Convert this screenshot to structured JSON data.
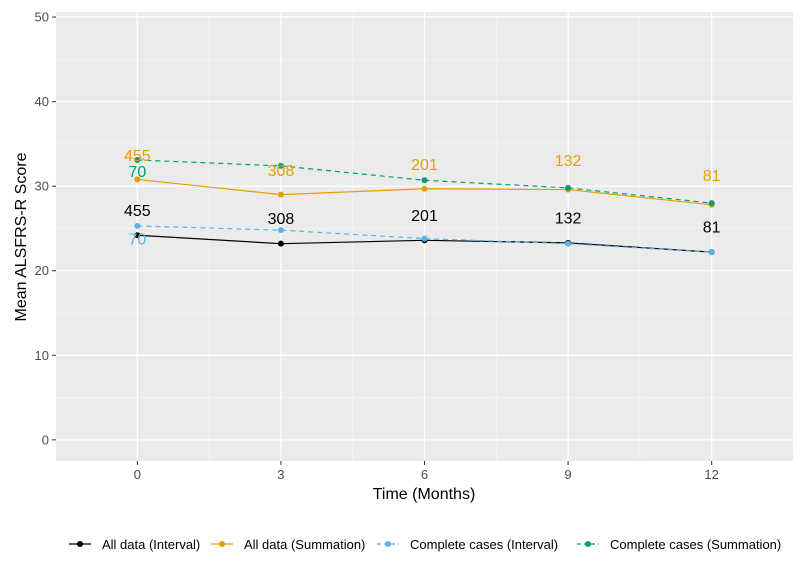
{
  "chart_data": {
    "type": "line",
    "xlabel": "Time (Months)",
    "ylabel": "Mean ALSFRS-R Score",
    "x": [
      0,
      3,
      6,
      9,
      12
    ],
    "xticks": [
      "0",
      "3",
      "6",
      "9",
      "12"
    ],
    "xlim": [
      -1.7,
      13.7
    ],
    "ylim": [
      -2.5,
      50.6
    ],
    "yticks": [
      0,
      10,
      20,
      30,
      40,
      50
    ],
    "ytick_labels": [
      "0",
      "10",
      "20",
      "30",
      "40",
      "50"
    ],
    "grid": true,
    "legend_position": "bottom",
    "series": [
      {
        "name": "All data (Interval)",
        "color": "#000000",
        "dash": "solid",
        "values": [
          24.2,
          23.2,
          23.6,
          23.3,
          22.2
        ],
        "labels": [
          "455",
          "308",
          "201",
          "132",
          "81"
        ],
        "label_dy": [
          2.3,
          2.3,
          2.3,
          2.3,
          2.3
        ]
      },
      {
        "name": "All data (Summation)",
        "color": "#E69F00",
        "dash": "solid",
        "values": [
          30.8,
          29.0,
          29.7,
          29.6,
          27.8
        ],
        "labels": [
          "455",
          "308",
          "201",
          "132",
          "81"
        ],
        "label_dy": [
          2.2,
          2.2,
          2.2,
          2.8,
          2.8
        ]
      },
      {
        "name": "Complete cases (Interval)",
        "color": "#56B4E9",
        "dash": "dashed",
        "values": [
          25.3,
          24.8,
          23.8,
          23.2,
          22.2
        ],
        "labels": [
          "70",
          "",
          "",
          "",
          ""
        ],
        "label_dy": [
          -2.2,
          0,
          0,
          0,
          0
        ]
      },
      {
        "name": "Complete cases (Summation)",
        "color": "#009E73",
        "dash": "dashed",
        "values": [
          33.1,
          32.4,
          30.7,
          29.8,
          28.0
        ],
        "labels": [
          "70",
          "",
          "",
          "",
          ""
        ],
        "label_dy": [
          -2.0,
          0,
          0,
          0,
          0
        ]
      }
    ]
  }
}
